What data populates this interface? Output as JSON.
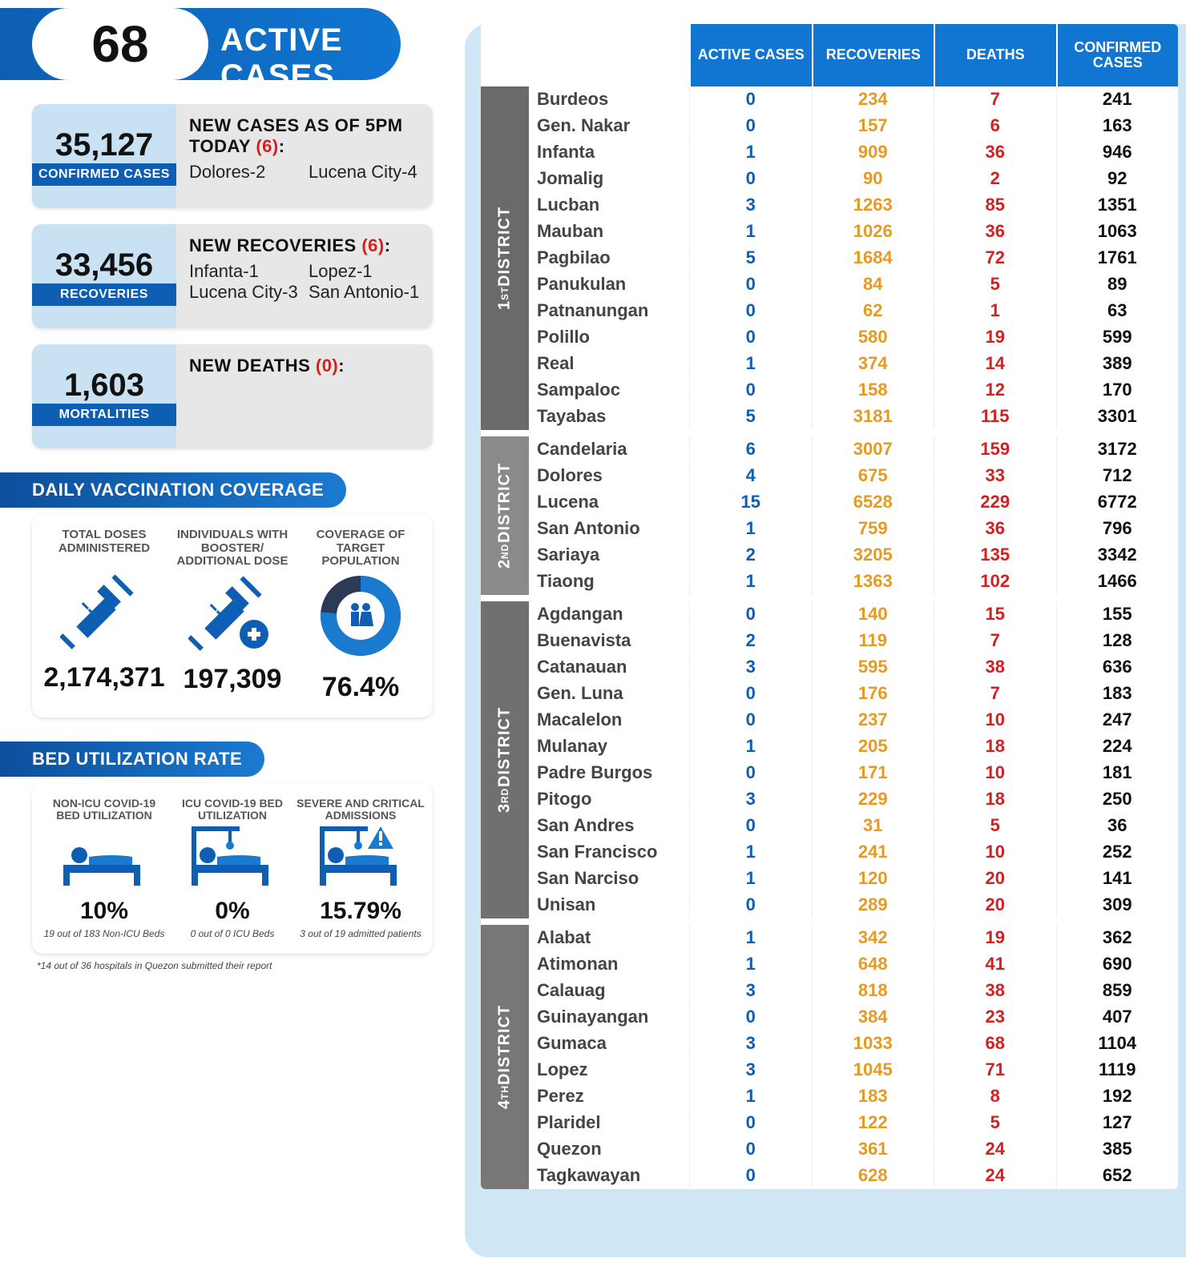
{
  "colors": {
    "blue": "#0e5fb3",
    "lightblue": "#c9e2f3",
    "orange": "#e79a1f",
    "red": "#d32020",
    "black": "#111"
  },
  "header": {
    "number": "68",
    "label": "ACTIVE CASES"
  },
  "cards": [
    {
      "num": "35,127",
      "tag": "CONFIRMED CASES",
      "title": "NEW CASES AS OF 5PM TODAY ",
      "count": "(6)",
      "items": [
        "Dolores-2",
        "Lucena City-4"
      ]
    },
    {
      "num": "33,456",
      "tag": "RECOVERIES",
      "title": "NEW RECOVERIES ",
      "count": "(6)",
      "items": [
        "Infanta-1",
        "Lopez-1",
        "Lucena City-3",
        "San Antonio-1"
      ]
    },
    {
      "num": "1,603",
      "tag": "MORTALITIES",
      "title": "NEW DEATHS ",
      "count": "(0)",
      "items": []
    }
  ],
  "vax": {
    "title": "DAILY VACCINATION COVERAGE",
    "cols": [
      {
        "label": "TOTAL DOSES ADMINISTERED",
        "value": "2,174,371",
        "icon": "syringe"
      },
      {
        "label": "INDIVIDUALS WITH BOOSTER/ ADDITIONAL DOSE",
        "value": "197,309",
        "icon": "syringe-plus"
      },
      {
        "label": "COVERAGE OF TARGET POPULATION",
        "value": "76.4%",
        "icon": "donut",
        "pct": 76.4
      }
    ]
  },
  "bed": {
    "title": "BED UTILIZATION RATE",
    "cols": [
      {
        "label": "NON-ICU COVID-19 BED UTILIZATION",
        "value": "10%",
        "sub": "19 out of 183 Non-ICU Beds",
        "icon": "bed"
      },
      {
        "label": "ICU COVID-19 BED UTILIZATION",
        "value": "0%",
        "sub": "0 out of 0 ICU Beds",
        "icon": "icu"
      },
      {
        "label": "SEVERE AND CRITICAL ADMISSIONS",
        "value": "15.79%",
        "sub": "3 out of 19 admitted patients",
        "icon": "alert"
      }
    ],
    "footnote": "*14 out of 36 hospitals in Quezon submitted their report"
  },
  "table": {
    "headers": [
      "ACTIVE CASES",
      "RECOVERIES",
      "DEATHS",
      "CONFIRMED CASES"
    ],
    "districts": [
      {
        "name": "1ST DISTRICT",
        "rows": [
          {
            "m": "Burdeos",
            "a": 0,
            "r": 234,
            "d": 7,
            "c": 241
          },
          {
            "m": "Gen. Nakar",
            "a": 0,
            "r": 157,
            "d": 6,
            "c": 163
          },
          {
            "m": "Infanta",
            "a": 1,
            "r": 909,
            "d": 36,
            "c": 946
          },
          {
            "m": "Jomalig",
            "a": 0,
            "r": 90,
            "d": 2,
            "c": 92
          },
          {
            "m": "Lucban",
            "a": 3,
            "r": 1263,
            "d": 85,
            "c": 1351
          },
          {
            "m": "Mauban",
            "a": 1,
            "r": 1026,
            "d": 36,
            "c": 1063
          },
          {
            "m": "Pagbilao",
            "a": 5,
            "r": 1684,
            "d": 72,
            "c": 1761
          },
          {
            "m": "Panukulan",
            "a": 0,
            "r": 84,
            "d": 5,
            "c": 89
          },
          {
            "m": "Patnanungan",
            "a": 0,
            "r": 62,
            "d": 1,
            "c": 63
          },
          {
            "m": "Polillo",
            "a": 0,
            "r": 580,
            "d": 19,
            "c": 599
          },
          {
            "m": "Real",
            "a": 1,
            "r": 374,
            "d": 14,
            "c": 389
          },
          {
            "m": "Sampaloc",
            "a": 0,
            "r": 158,
            "d": 12,
            "c": 170
          },
          {
            "m": "Tayabas",
            "a": 5,
            "r": 3181,
            "d": 115,
            "c": 3301
          }
        ]
      },
      {
        "name": "2ND DISTRICT",
        "rows": [
          {
            "m": "Candelaria",
            "a": 6,
            "r": 3007,
            "d": 159,
            "c": 3172
          },
          {
            "m": "Dolores",
            "a": 4,
            "r": 675,
            "d": 33,
            "c": 712
          },
          {
            "m": "Lucena",
            "a": 15,
            "r": 6528,
            "d": 229,
            "c": 6772
          },
          {
            "m": "San Antonio",
            "a": 1,
            "r": 759,
            "d": 36,
            "c": 796
          },
          {
            "m": "Sariaya",
            "a": 2,
            "r": 3205,
            "d": 135,
            "c": 3342
          },
          {
            "m": "Tiaong",
            "a": 1,
            "r": 1363,
            "d": 102,
            "c": 1466
          }
        ]
      },
      {
        "name": "3RD DISTRICT",
        "rows": [
          {
            "m": "Agdangan",
            "a": 0,
            "r": 140,
            "d": 15,
            "c": 155
          },
          {
            "m": "Buenavista",
            "a": 2,
            "r": 119,
            "d": 7,
            "c": 128
          },
          {
            "m": "Catanauan",
            "a": 3,
            "r": 595,
            "d": 38,
            "c": 636
          },
          {
            "m": "Gen. Luna",
            "a": 0,
            "r": 176,
            "d": 7,
            "c": 183
          },
          {
            "m": "Macalelon",
            "a": 0,
            "r": 237,
            "d": 10,
            "c": 247
          },
          {
            "m": "Mulanay",
            "a": 1,
            "r": 205,
            "d": 18,
            "c": 224
          },
          {
            "m": "Padre Burgos",
            "a": 0,
            "r": 171,
            "d": 10,
            "c": 181
          },
          {
            "m": "Pitogo",
            "a": 3,
            "r": 229,
            "d": 18,
            "c": 250
          },
          {
            "m": "San Andres",
            "a": 0,
            "r": 31,
            "d": 5,
            "c": 36
          },
          {
            "m": "San Francisco",
            "a": 1,
            "r": 241,
            "d": 10,
            "c": 252
          },
          {
            "m": "San Narciso",
            "a": 1,
            "r": 120,
            "d": 20,
            "c": 141
          },
          {
            "m": "Unisan",
            "a": 0,
            "r": 289,
            "d": 20,
            "c": 309
          }
        ]
      },
      {
        "name": "4TH DISTRICT",
        "rows": [
          {
            "m": "Alabat",
            "a": 1,
            "r": 342,
            "d": 19,
            "c": 362
          },
          {
            "m": "Atimonan",
            "a": 1,
            "r": 648,
            "d": 41,
            "c": 690
          },
          {
            "m": "Calauag",
            "a": 3,
            "r": 818,
            "d": 38,
            "c": 859
          },
          {
            "m": "Guinayangan",
            "a": 0,
            "r": 384,
            "d": 23,
            "c": 407
          },
          {
            "m": "Gumaca",
            "a": 3,
            "r": 1033,
            "d": 68,
            "c": 1104
          },
          {
            "m": "Lopez",
            "a": 3,
            "r": 1045,
            "d": 71,
            "c": 1119
          },
          {
            "m": "Perez",
            "a": 1,
            "r": 183,
            "d": 8,
            "c": 192
          },
          {
            "m": "Plaridel",
            "a": 0,
            "r": 122,
            "d": 5,
            "c": 127
          },
          {
            "m": "Quezon",
            "a": 0,
            "r": 361,
            "d": 24,
            "c": 385
          },
          {
            "m": "Tagkawayan",
            "a": 0,
            "r": 628,
            "d": 24,
            "c": 652
          }
        ]
      }
    ]
  }
}
